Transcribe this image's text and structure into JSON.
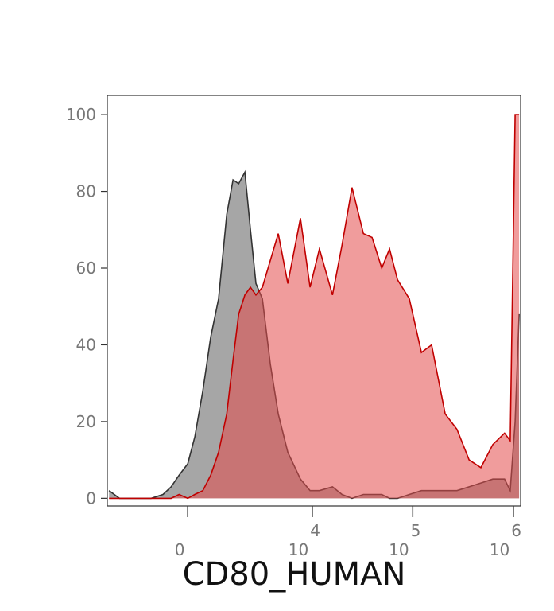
{
  "chart_data": {
    "type": "histogram-overlay",
    "x_label": "CD80_HUMAN",
    "x_scale": {
      "type": "asinh",
      "cofactor": 1160
    },
    "xlim": [
      -3560,
      1180000
    ],
    "ylim": [
      -2,
      105
    ],
    "xticks": [
      0,
      {
        "value": 10000,
        "label": "10",
        "exponent": "4"
      },
      {
        "value": 100000,
        "label": "10",
        "exponent": "5"
      },
      {
        "value": 1000000,
        "label": "10",
        "exponent": "6"
      }
    ],
    "yticks": [
      0,
      20,
      40,
      60,
      80,
      100
    ],
    "x": [
      -3410,
      -2640,
      -1750,
      -1090,
      -690,
      -450,
      -230,
      0,
      190,
      410,
      640,
      890,
      1180,
      1430,
      1680,
      1990,
      2300,
      2640,
      3100,
      3750,
      4530,
      5670,
      7610,
      9500,
      11800,
      15900,
      19800,
      24900,
      32300,
      39400,
      49200,
      58800,
      70500,
      92400,
      122000,
      154000,
      210000,
      275000,
      363000,
      475000,
      624000,
      817000,
      929000,
      1040000,
      1140000
    ],
    "series": [
      {
        "color": "#a6a6a6",
        "stroke": "#333333",
        "opacity": 1,
        "values": [
          2,
          0,
          0,
          0,
          1,
          3,
          6,
          9,
          16,
          28,
          42,
          52,
          74,
          83,
          82,
          85,
          70,
          56,
          52,
          35,
          22,
          12,
          5,
          2,
          2,
          3,
          1,
          0,
          1,
          1,
          1,
          0,
          0,
          1,
          2,
          2,
          2,
          2,
          3,
          4,
          5,
          5,
          2,
          20,
          48
        ]
      },
      {
        "color": "#e34a4a",
        "stroke": "#c00000",
        "opacity": 0.55,
        "values": [
          0,
          0,
          0,
          0,
          0,
          0,
          1,
          0,
          1,
          2,
          6,
          12,
          22,
          36,
          48,
          53,
          55,
          53,
          55,
          62,
          69,
          56,
          73,
          55,
          65,
          53,
          66,
          81,
          69,
          68,
          60,
          65,
          57,
          52,
          38,
          40,
          22,
          18,
          10,
          8,
          14,
          17,
          15,
          100,
          100
        ]
      }
    ]
  }
}
